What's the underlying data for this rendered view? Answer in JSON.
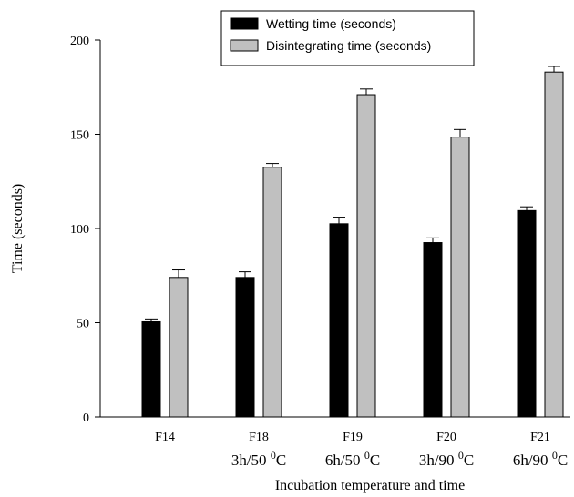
{
  "chart_data": {
    "type": "bar",
    "title": "",
    "xlabel": "Incubation temperature and time",
    "ylabel": "Time (seconds)",
    "ylim": [
      0,
      200
    ],
    "yticks": [
      "0",
      "50",
      "100",
      "150",
      "200"
    ],
    "categories": [
      {
        "label": "F14",
        "sub": ""
      },
      {
        "label": "F18",
        "sub": "3h/50 ",
        "sup": "0",
        "unit": "C"
      },
      {
        "label": "F19",
        "sub": "6h/50 ",
        "sup": "0",
        "unit": "C"
      },
      {
        "label": "F20",
        "sub": "3h/90 ",
        "sup": "0",
        "unit": "C"
      },
      {
        "label": "F21",
        "sub": "6h/90 ",
        "sup": "0",
        "unit": "C"
      }
    ],
    "series": [
      {
        "name": "Wetting time (seconds)",
        "color": "#000000",
        "values": [
          50.5,
          74,
          102.5,
          92.5,
          109.5
        ],
        "errors": [
          1.5,
          3,
          3.5,
          2.5,
          2
        ]
      },
      {
        "name": "Disintegrating time (seconds)",
        "color": "#c0c0c0",
        "values": [
          74,
          132.5,
          171,
          148.5,
          183
        ],
        "errors": [
          4,
          2,
          3,
          4,
          3
        ]
      }
    ],
    "legend": "top-center",
    "grid": false
  }
}
